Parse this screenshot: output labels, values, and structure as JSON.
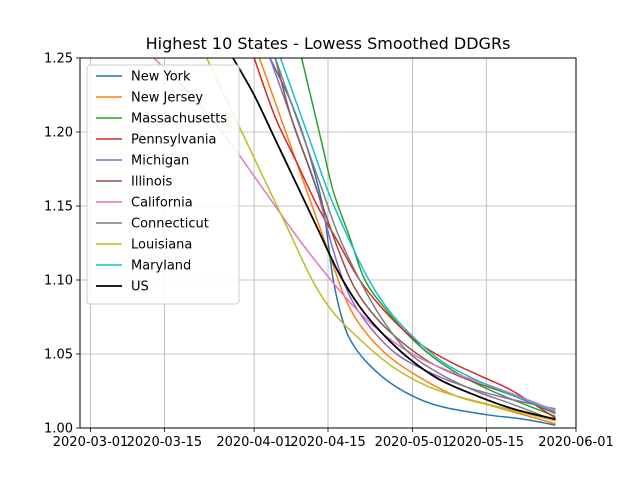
{
  "chart_data": {
    "type": "line",
    "title": "Highest 10 States - Lowess Smoothed DDGRs",
    "xlabel": "",
    "ylabel": "",
    "xlim": [
      "2020-02-28",
      "2020-06-01"
    ],
    "ylim": [
      1.0,
      1.25
    ],
    "x_ticks": [
      "2020-03-01",
      "2020-03-15",
      "2020-04-01",
      "2020-04-15",
      "2020-05-01",
      "2020-05-15",
      "2020-06-01"
    ],
    "y_ticks": [
      "1.00",
      "1.05",
      "1.10",
      "1.15",
      "1.20",
      "1.25"
    ],
    "grid": true,
    "legend_position": "top-left",
    "series": [
      {
        "name": "New York",
        "color": "#1f77b4",
        "points": [
          [
            "2020-04-04",
            1.25
          ],
          [
            "2020-04-08",
            1.22
          ],
          [
            "2020-04-11",
            1.19
          ],
          [
            "2020-04-14",
            1.15
          ],
          [
            "2020-04-16",
            1.1
          ],
          [
            "2020-04-18",
            1.07
          ],
          [
            "2020-04-20",
            1.055
          ],
          [
            "2020-04-23",
            1.042
          ],
          [
            "2020-04-27",
            1.03
          ],
          [
            "2020-05-02",
            1.02
          ],
          [
            "2020-05-07",
            1.014
          ],
          [
            "2020-05-15",
            1.009
          ],
          [
            "2020-05-22",
            1.006
          ],
          [
            "2020-05-28",
            1.002
          ]
        ]
      },
      {
        "name": "New Jersey",
        "color": "#ff7f0e",
        "points": [
          [
            "2020-04-02",
            1.25
          ],
          [
            "2020-04-05",
            1.22
          ],
          [
            "2020-04-09",
            1.18
          ],
          [
            "2020-04-12",
            1.15
          ],
          [
            "2020-04-15",
            1.12
          ],
          [
            "2020-04-18",
            1.09
          ],
          [
            "2020-04-21",
            1.07
          ],
          [
            "2020-04-26",
            1.05
          ],
          [
            "2020-05-02",
            1.035
          ],
          [
            "2020-05-09",
            1.022
          ],
          [
            "2020-05-16",
            1.015
          ],
          [
            "2020-05-28",
            1.003
          ]
        ]
      },
      {
        "name": "Massachusetts",
        "color": "#2ca02c",
        "points": [
          [
            "2020-04-10",
            1.25
          ],
          [
            "2020-04-12",
            1.22
          ],
          [
            "2020-04-14",
            1.19
          ],
          [
            "2020-04-16",
            1.16
          ],
          [
            "2020-04-19",
            1.13
          ],
          [
            "2020-04-22",
            1.1
          ],
          [
            "2020-04-26",
            1.08
          ],
          [
            "2020-05-01",
            1.06
          ],
          [
            "2020-05-06",
            1.045
          ],
          [
            "2020-05-12",
            1.032
          ],
          [
            "2020-05-18",
            1.022
          ],
          [
            "2020-05-28",
            1.008
          ]
        ]
      },
      {
        "name": "Pennsylvania",
        "color": "#d62728",
        "points": [
          [
            "2020-04-01",
            1.25
          ],
          [
            "2020-04-05",
            1.21
          ],
          [
            "2020-04-09",
            1.18
          ],
          [
            "2020-04-13",
            1.15
          ],
          [
            "2020-04-17",
            1.125
          ],
          [
            "2020-04-21",
            1.1
          ],
          [
            "2020-04-26",
            1.078
          ],
          [
            "2020-05-02",
            1.058
          ],
          [
            "2020-05-08",
            1.045
          ],
          [
            "2020-05-14",
            1.035
          ],
          [
            "2020-05-20",
            1.025
          ],
          [
            "2020-05-28",
            1.007
          ]
        ]
      },
      {
        "name": "Michigan",
        "color": "#9467bd",
        "points": [
          [
            "2020-04-04",
            1.25
          ],
          [
            "2020-04-07",
            1.22
          ],
          [
            "2020-04-10",
            1.19
          ],
          [
            "2020-04-13",
            1.16
          ],
          [
            "2020-04-16",
            1.12
          ],
          [
            "2020-04-19",
            1.09
          ],
          [
            "2020-04-23",
            1.068
          ],
          [
            "2020-04-28",
            1.05
          ],
          [
            "2020-05-04",
            1.038
          ],
          [
            "2020-05-11",
            1.028
          ],
          [
            "2020-05-19",
            1.02
          ],
          [
            "2020-05-28",
            1.013
          ]
        ]
      },
      {
        "name": "Illinois",
        "color": "#8c564b",
        "points": [
          [
            "2020-04-05",
            1.25
          ],
          [
            "2020-04-08",
            1.21
          ],
          [
            "2020-04-11",
            1.18
          ],
          [
            "2020-04-14",
            1.15
          ],
          [
            "2020-04-17",
            1.12
          ],
          [
            "2020-04-20",
            1.095
          ],
          [
            "2020-04-24",
            1.075
          ],
          [
            "2020-04-29",
            1.058
          ],
          [
            "2020-05-05",
            1.043
          ],
          [
            "2020-05-12",
            1.032
          ],
          [
            "2020-05-20",
            1.022
          ],
          [
            "2020-05-28",
            1.01
          ]
        ]
      },
      {
        "name": "California",
        "color": "#e377c2",
        "points": [
          [
            "2020-03-13",
            1.25
          ],
          [
            "2020-03-20",
            1.225
          ],
          [
            "2020-03-27",
            1.195
          ],
          [
            "2020-04-03",
            1.16
          ],
          [
            "2020-04-10",
            1.125
          ],
          [
            "2020-04-16",
            1.098
          ],
          [
            "2020-04-21",
            1.078
          ],
          [
            "2020-04-26",
            1.062
          ],
          [
            "2020-05-02",
            1.048
          ],
          [
            "2020-05-09",
            1.037
          ],
          [
            "2020-05-17",
            1.027
          ],
          [
            "2020-05-28",
            1.012
          ]
        ]
      },
      {
        "name": "Connecticut",
        "color": "#7f7f7f",
        "points": [
          [
            "2020-04-05",
            1.25
          ],
          [
            "2020-04-08",
            1.22
          ],
          [
            "2020-04-11",
            1.19
          ],
          [
            "2020-04-14",
            1.16
          ],
          [
            "2020-04-17",
            1.13
          ],
          [
            "2020-04-21",
            1.1
          ],
          [
            "2020-04-25",
            1.075
          ],
          [
            "2020-04-30",
            1.052
          ],
          [
            "2020-05-06",
            1.037
          ],
          [
            "2020-05-13",
            1.025
          ],
          [
            "2020-05-20",
            1.016
          ],
          [
            "2020-05-28",
            1.005
          ]
        ]
      },
      {
        "name": "Louisiana",
        "color": "#bcbd22",
        "points": [
          [
            "2020-03-23",
            1.25
          ],
          [
            "2020-03-27",
            1.22
          ],
          [
            "2020-03-31",
            1.19
          ],
          [
            "2020-04-04",
            1.16
          ],
          [
            "2020-04-08",
            1.13
          ],
          [
            "2020-04-12",
            1.1
          ],
          [
            "2020-04-16",
            1.078
          ],
          [
            "2020-04-21",
            1.06
          ],
          [
            "2020-04-27",
            1.042
          ],
          [
            "2020-05-04",
            1.028
          ],
          [
            "2020-05-11",
            1.02
          ],
          [
            "2020-05-20",
            1.012
          ],
          [
            "2020-05-28",
            1.005
          ]
        ]
      },
      {
        "name": "Maryland",
        "color": "#17becf",
        "points": [
          [
            "2020-04-06",
            1.25
          ],
          [
            "2020-04-09",
            1.22
          ],
          [
            "2020-04-12",
            1.19
          ],
          [
            "2020-04-15",
            1.16
          ],
          [
            "2020-04-18",
            1.135
          ],
          [
            "2020-04-22",
            1.105
          ],
          [
            "2020-04-26",
            1.082
          ],
          [
            "2020-05-01",
            1.062
          ],
          [
            "2020-05-07",
            1.044
          ],
          [
            "2020-05-14",
            1.031
          ],
          [
            "2020-05-21",
            1.021
          ],
          [
            "2020-05-28",
            1.011
          ]
        ]
      },
      {
        "name": "US",
        "color": "#000000",
        "points": [
          [
            "2020-03-28",
            1.25
          ],
          [
            "2020-04-01",
            1.225
          ],
          [
            "2020-04-05",
            1.195
          ],
          [
            "2020-04-09",
            1.165
          ],
          [
            "2020-04-13",
            1.135
          ],
          [
            "2020-04-17",
            1.105
          ],
          [
            "2020-04-21",
            1.082
          ],
          [
            "2020-04-25",
            1.065
          ],
          [
            "2020-04-30",
            1.048
          ],
          [
            "2020-05-06",
            1.033
          ],
          [
            "2020-05-13",
            1.022
          ],
          [
            "2020-05-20",
            1.013
          ],
          [
            "2020-05-28",
            1.006
          ]
        ]
      }
    ]
  }
}
